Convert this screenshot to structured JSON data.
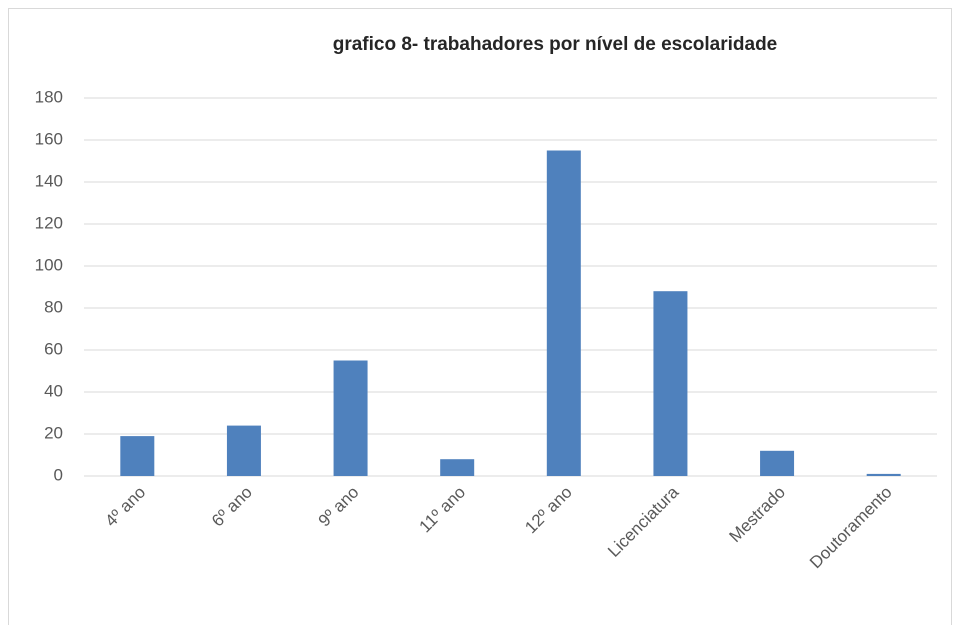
{
  "chart_data": {
    "type": "bar",
    "title": "grafico 8- trabahadores por nível de escolaridade",
    "categories": [
      "4º ano",
      "6º ano",
      "9º ano",
      "11º ano",
      "12º ano",
      "Licenciatura",
      "Mestrado",
      "Doutoramento"
    ],
    "values": [
      19,
      24,
      55,
      8,
      155,
      88,
      12,
      1
    ],
    "color": "#4f81bd",
    "ylim": [
      0,
      180
    ],
    "yticks": [
      0,
      20,
      40,
      60,
      80,
      100,
      120,
      140,
      160,
      180
    ],
    "grid": true
  }
}
